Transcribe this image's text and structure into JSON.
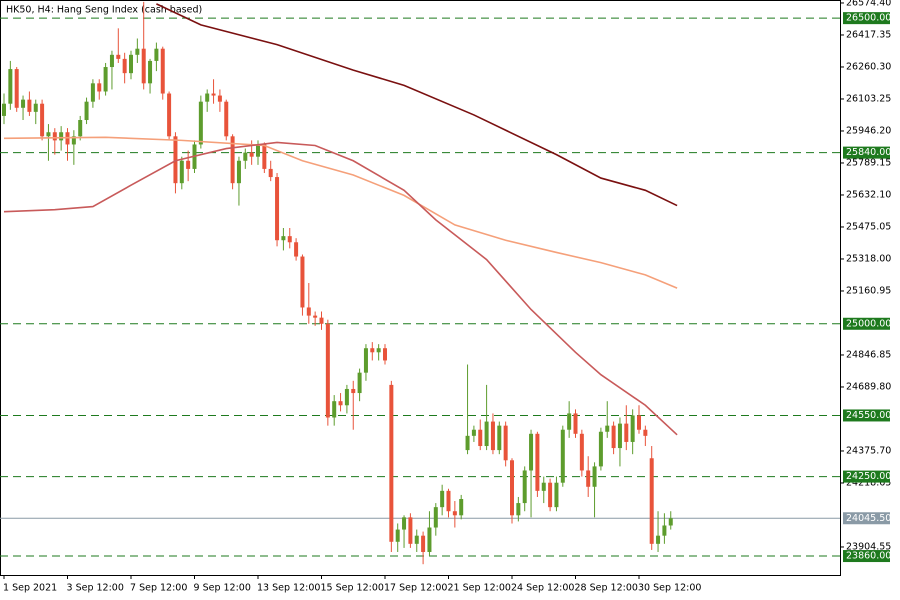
{
  "chart_data": {
    "type": "candlestick",
    "title": "HK50, H4:  Hang Seng Index (cash based)",
    "categories": [
      "1 Sep 2021",
      null,
      null,
      null,
      null,
      null,
      null,
      null,
      null,
      null,
      "3 Sep 12:00",
      null,
      null,
      null,
      null,
      null,
      null,
      null,
      null,
      null,
      "7 Sep 12:00",
      null,
      null,
      null,
      null,
      null,
      null,
      null,
      null,
      null,
      "9 Sep 12:00",
      null,
      null,
      null,
      null,
      null,
      null,
      null,
      null,
      null,
      "13 Sep 12:00",
      null,
      null,
      null,
      null,
      null,
      null,
      null,
      null,
      null,
      "15 Sep 12:00",
      null,
      null,
      null,
      null,
      null,
      null,
      null,
      null,
      null,
      "17 Sep 12:00",
      null,
      null,
      null,
      null,
      null,
      null,
      null,
      null,
      null,
      "21 Sep 12:00",
      null,
      null,
      null,
      null,
      null,
      null,
      null,
      null,
      null,
      "24 Sep 12:00",
      null,
      null,
      null,
      null,
      null,
      null,
      null,
      null,
      null,
      "28 Sep 12:00",
      null,
      null,
      null,
      null,
      null,
      null,
      null,
      null,
      null,
      "30 Sep 12:00",
      null,
      null,
      null,
      null,
      null
    ],
    "ohlc": [
      [
        26020,
        26130,
        25980,
        26080
      ],
      [
        26080,
        26290,
        26050,
        26250
      ],
      [
        26250,
        26260,
        26040,
        26060
      ],
      [
        26060,
        26120,
        26000,
        26100
      ],
      [
        26100,
        26140,
        26020,
        26040
      ],
      [
        26040,
        26100,
        25980,
        26080
      ],
      [
        26080,
        26100,
        25900,
        25920
      ],
      [
        25920,
        25980,
        25800,
        25940
      ],
      [
        25940,
        25960,
        25830,
        25900
      ],
      [
        25900,
        25970,
        25850,
        25940
      ],
      [
        25940,
        25960,
        25800,
        25880
      ],
      [
        25880,
        25950,
        25780,
        25920
      ],
      [
        25920,
        26020,
        25900,
        26000
      ],
      [
        26000,
        26110,
        25980,
        26090
      ],
      [
        26090,
        26200,
        26060,
        26180
      ],
      [
        26180,
        26200,
        26100,
        26140
      ],
      [
        26140,
        26280,
        26120,
        26260
      ],
      [
        26260,
        26340,
        26150,
        26320
      ],
      [
        26320,
        26450,
        26280,
        26300
      ],
      [
        26300,
        26330,
        26180,
        26230
      ],
      [
        26230,
        26340,
        26200,
        26320
      ],
      [
        26320,
        26400,
        26280,
        26350
      ],
      [
        26350,
        26580,
        26150,
        26180
      ],
      [
        26180,
        26300,
        26130,
        26290
      ],
      [
        26290,
        26380,
        26240,
        26350
      ],
      [
        26350,
        26360,
        26100,
        26130
      ],
      [
        26130,
        26140,
        25900,
        25920
      ],
      [
        25920,
        25940,
        25640,
        25690
      ],
      [
        25690,
        25820,
        25660,
        25800
      ],
      [
        25800,
        25850,
        25700,
        25760
      ],
      [
        25760,
        25900,
        25740,
        25880
      ],
      [
        25880,
        26120,
        25860,
        26090
      ],
      [
        26090,
        26150,
        26040,
        26130
      ],
      [
        26130,
        26200,
        26080,
        26120
      ],
      [
        26120,
        26150,
        26040,
        26090
      ],
      [
        26090,
        26100,
        25900,
        25920
      ],
      [
        25920,
        25930,
        25660,
        25690
      ],
      [
        25690,
        25820,
        25580,
        25800
      ],
      [
        25800,
        25860,
        25760,
        25840
      ],
      [
        25840,
        25900,
        25780,
        25820
      ],
      [
        25820,
        25900,
        25780,
        25880
      ],
      [
        25880,
        25890,
        25740,
        25760
      ],
      [
        25760,
        25800,
        25700,
        25720
      ],
      [
        25720,
        25740,
        25380,
        25410
      ],
      [
        25410,
        25470,
        25360,
        25430
      ],
      [
        25430,
        25470,
        25370,
        25400
      ],
      [
        25400,
        25420,
        25310,
        25330
      ],
      [
        25330,
        25340,
        25040,
        25080
      ],
      [
        25080,
        25200,
        25000,
        25040
      ],
      [
        25040,
        25060,
        24990,
        25030
      ],
      [
        25030,
        25060,
        24970,
        25000
      ],
      [
        25000,
        25020,
        24500,
        24540
      ],
      [
        24540,
        24650,
        24500,
        24620
      ],
      [
        24620,
        24660,
        24570,
        24600
      ],
      [
        24600,
        24700,
        24560,
        24680
      ],
      [
        24680,
        24720,
        24480,
        24660
      ],
      [
        24660,
        24780,
        24620,
        24760
      ],
      [
        24760,
        24900,
        24720,
        24880
      ],
      [
        24880,
        24910,
        24820,
        24860
      ],
      [
        24860,
        24900,
        24820,
        24880
      ],
      [
        24880,
        24900,
        24800,
        24820
      ],
      [
        24700,
        24720,
        23880,
        23930
      ],
      [
        23930,
        24020,
        23880,
        23990
      ],
      [
        23990,
        24060,
        23900,
        24050
      ],
      [
        24050,
        24070,
        23900,
        23920
      ],
      [
        23920,
        23990,
        23880,
        23960
      ],
      [
        23960,
        23980,
        23820,
        23880
      ],
      [
        23880,
        24080,
        23860,
        24000
      ],
      [
        24000,
        24120,
        23960,
        24100
      ],
      [
        24100,
        24210,
        24060,
        24180
      ],
      [
        24180,
        24190,
        24050,
        24080
      ],
      [
        24080,
        24130,
        24000,
        24060
      ],
      [
        24060,
        24160,
        24040,
        24140
      ],
      [
        24380,
        24800,
        24360,
        24450
      ],
      [
        24450,
        24500,
        24420,
        24480
      ],
      [
        24480,
        24530,
        24380,
        24400
      ],
      [
        24400,
        24700,
        24380,
        24520
      ],
      [
        24520,
        24560,
        24360,
        24380
      ],
      [
        24380,
        24520,
        24360,
        24500
      ],
      [
        24500,
        24520,
        24300,
        24330
      ],
      [
        24330,
        24340,
        24020,
        24060
      ],
      [
        24060,
        24150,
        24030,
        24120
      ],
      [
        24120,
        24300,
        24080,
        24280
      ],
      [
        24280,
        24480,
        24050,
        24460
      ],
      [
        24460,
        24470,
        24150,
        24180
      ],
      [
        24180,
        24250,
        24120,
        24220
      ],
      [
        24220,
        24240,
        24080,
        24100
      ],
      [
        24100,
        24250,
        24080,
        24220
      ],
      [
        24220,
        24500,
        24200,
        24480
      ],
      [
        24480,
        24620,
        24440,
        24560
      ],
      [
        24560,
        24580,
        24440,
        24460
      ],
      [
        24460,
        24480,
        24250,
        24280
      ],
      [
        24280,
        24350,
        24150,
        24200
      ],
      [
        24200,
        24320,
        24050,
        24300
      ],
      [
        24300,
        24490,
        24280,
        24470
      ],
      [
        24470,
        24620,
        24440,
        24500
      ],
      [
        24500,
        24520,
        24360,
        24390
      ],
      [
        24390,
        24540,
        24300,
        24510
      ],
      [
        24510,
        24600,
        24380,
        24420
      ],
      [
        24420,
        24580,
        24360,
        24550
      ],
      [
        24550,
        24600,
        24460,
        24480
      ],
      [
        24480,
        24500,
        24400,
        24450
      ],
      [
        24340,
        24400,
        23890,
        23920
      ],
      [
        23920,
        24080,
        23880,
        23960
      ],
      [
        23960,
        24070,
        23920,
        24010
      ],
      [
        24010,
        24080,
        23990,
        24045.5
      ]
    ],
    "up_color": "#5d9c2d",
    "down_color": "#e8533a",
    "series": [
      {
        "color": "#7a1010",
        "x": [
          24,
          31,
          43,
          55,
          63,
          74,
          87,
          94,
          101,
          106
        ],
        "values": [
          26570,
          26467,
          26370,
          26245,
          26170,
          26025,
          25830,
          25715,
          25655,
          25580
        ]
      },
      {
        "color": "#f5a07a",
        "x": [
          0,
          16,
          28,
          41,
          47,
          55,
          63,
          71,
          79,
          87,
          94,
          101,
          106
        ],
        "values": [
          25910,
          25915,
          25900,
          25875,
          25800,
          25730,
          25630,
          25485,
          25410,
          25350,
          25300,
          25240,
          25175
        ]
      },
      {
        "color": "#c85a5a",
        "x": [
          0,
          8,
          14,
          20,
          27,
          35,
          43,
          49,
          55,
          63,
          68,
          76,
          83,
          90,
          94,
          101,
          106
        ],
        "values": [
          25550,
          25560,
          25575,
          25680,
          25800,
          25860,
          25890,
          25875,
          25800,
          25655,
          25510,
          25315,
          25070,
          24860,
          24750,
          24600,
          24455
        ]
      }
    ],
    "levels": {
      "values": [
        26500,
        25840,
        25000,
        24550,
        24250,
        23860
      ],
      "value_labels": [
        "26500.00",
        "25840.00",
        "25000.00",
        "24550.00",
        "24250.00",
        "23860.00"
      ],
      "color": "#1e7a1e"
    },
    "last": {
      "value": 24045.5,
      "label": "24045.50",
      "color": "#8a9aa6"
    },
    "ylim": [
      23767,
      26589
    ],
    "yticks": [
      {
        "value": 26574.4,
        "label": "26574.40"
      },
      {
        "value": 26417.35,
        "label": "26417.35"
      },
      {
        "value": 26260.3,
        "label": "26260.30"
      },
      {
        "value": 26103.25,
        "label": "26103.25"
      },
      {
        "value": 25946.2,
        "label": "25946.20"
      },
      {
        "value": 25789.15,
        "label": "25789.15"
      },
      {
        "value": 25632.1,
        "label": "25632.10"
      },
      {
        "value": 25475.05,
        "label": "25475.05"
      },
      {
        "value": 25318,
        "label": "25318.00"
      },
      {
        "value": 25160.95,
        "label": "25160.95"
      },
      {
        "value": 24846.85,
        "label": "24846.85"
      },
      {
        "value": 24689.8,
        "label": "24689.80"
      },
      {
        "value": 24375.7,
        "label": "24375.70"
      },
      {
        "value": 24218.65,
        "label": "24218.65"
      },
      {
        "value": 23904.55,
        "label": "23904.55"
      }
    ]
  }
}
